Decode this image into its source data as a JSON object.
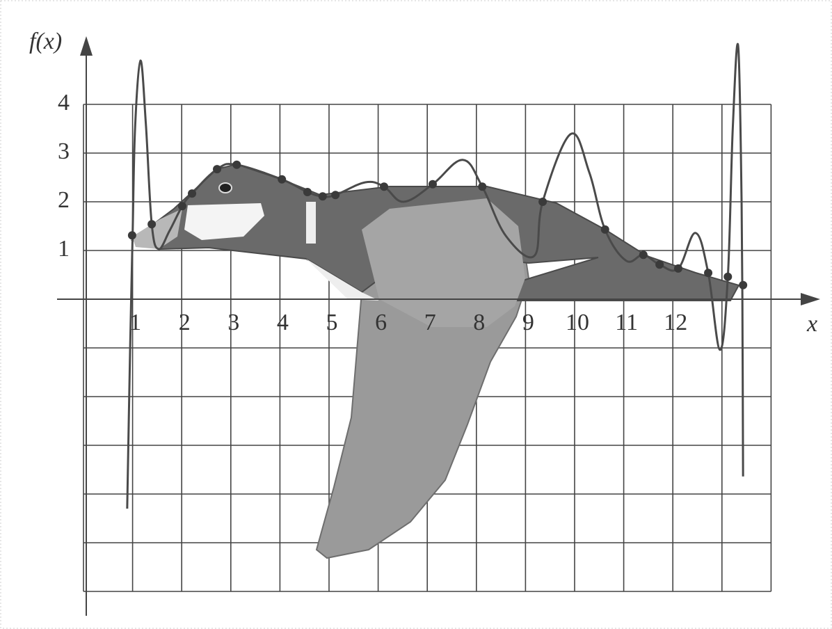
{
  "chart_data": {
    "type": "line",
    "xlabel": "x",
    "ylabel": "f(x)",
    "xlim": [
      0,
      15
    ],
    "ylim": [
      -6.5,
      5.4
    ],
    "xticks": [
      1,
      2,
      3,
      4,
      5,
      6,
      7,
      8,
      9,
      10,
      11,
      12
    ],
    "yticks": [
      1,
      2,
      3,
      4
    ],
    "xgrid": [
      0,
      1,
      2,
      3,
      4,
      5,
      6,
      7,
      8,
      9,
      10,
      11,
      12,
      13,
      14
    ],
    "ygrid": [
      -6,
      -5,
      -4,
      -3,
      -2,
      -1,
      0,
      1,
      2,
      3,
      4
    ],
    "grid": true,
    "series": [
      {
        "style": "line",
        "color": "#4a4a4a",
        "x": [
          0.89,
          0.95,
          1.0,
          1.05,
          1.16,
          1.27,
          1.39,
          1.53,
          1.75,
          2.01,
          2.21,
          2.72,
          3.12,
          4.04,
          4.56,
          4.87,
          5.13,
          5.74,
          6.12,
          6.52,
          7.11,
          7.72,
          8.12,
          8.6,
          9.18,
          9.35,
          9.92,
          10.3,
          10.62,
          11.05,
          11.4,
          11.73,
          12.11,
          12.46,
          12.72,
          12.96,
          13.12,
          13.22,
          13.33,
          13.4,
          13.42,
          13.43
        ],
        "values": [
          -4.3,
          -1.0,
          1.3,
          3.5,
          4.9,
          3.6,
          1.54,
          1.03,
          1.4,
          1.91,
          2.17,
          2.67,
          2.76,
          2.46,
          2.2,
          2.11,
          2.14,
          2.4,
          2.31,
          2.0,
          2.36,
          2.86,
          2.31,
          1.3,
          0.89,
          2.0,
          3.39,
          2.6,
          1.43,
          0.79,
          0.91,
          0.71,
          0.63,
          1.36,
          0.54,
          -1.04,
          0.46,
          3.5,
          5.2,
          2.0,
          -1.0,
          -3.64
        ]
      },
      {
        "style": "points",
        "color": "#3a3a3a",
        "x": [
          0.99,
          1.39,
          2.01,
          2.21,
          2.72,
          3.12,
          4.04,
          4.56,
          4.87,
          5.13,
          6.12,
          7.11,
          8.12,
          9.35,
          10.62,
          11.4,
          11.73,
          12.11,
          12.72,
          13.12,
          13.43
        ],
        "values": [
          1.31,
          1.54,
          1.91,
          2.17,
          2.67,
          2.76,
          2.46,
          2.2,
          2.11,
          2.14,
          2.31,
          2.36,
          2.31,
          2.0,
          1.43,
          0.91,
          0.71,
          0.63,
          0.54,
          0.46,
          0.29
        ]
      }
    ]
  }
}
